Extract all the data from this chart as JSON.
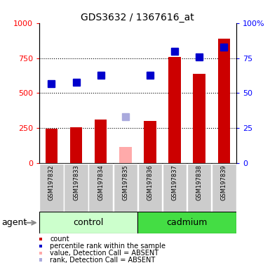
{
  "title": "GDS3632 / 1367616_at",
  "samples": [
    "GSM197832",
    "GSM197833",
    "GSM197834",
    "GSM197835",
    "GSM197836",
    "GSM197837",
    "GSM197838",
    "GSM197839"
  ],
  "count_values": [
    245,
    255,
    310,
    115,
    300,
    760,
    640,
    890
  ],
  "rank_values": [
    57,
    58,
    63,
    33,
    63,
    80,
    76,
    83
  ],
  "absent_flags": [
    false,
    false,
    false,
    true,
    false,
    false,
    false,
    false
  ],
  "color_count_present": "#cc0000",
  "color_count_absent": "#ffaaaa",
  "color_rank_present": "#0000cc",
  "color_rank_absent": "#aaaadd",
  "color_control_bg_light": "#ccffcc",
  "color_cadmium_bg_dark": "#44dd44",
  "color_xticklabel_bg": "#cccccc",
  "ylim_left": [
    0,
    1000
  ],
  "ylim_right": [
    0,
    100
  ],
  "yticks_left": [
    0,
    250,
    500,
    750,
    1000
  ],
  "ytick_labels_left": [
    "0",
    "250",
    "500",
    "750",
    "1000"
  ],
  "yticks_right": [
    0,
    25,
    50,
    75,
    100
  ],
  "ytick_labels_right": [
    "0",
    "25",
    "50",
    "75",
    "100%"
  ],
  "bar_width": 0.5,
  "marker_size": 7,
  "group_labels": [
    "control",
    "cadmium"
  ],
  "agent_label": "agent",
  "legend_items": [
    {
      "label": "count",
      "color": "#cc0000"
    },
    {
      "label": "percentile rank within the sample",
      "color": "#0000cc"
    },
    {
      "label": "value, Detection Call = ABSENT",
      "color": "#ffaaaa"
    },
    {
      "label": "rank, Detection Call = ABSENT",
      "color": "#aaaadd"
    }
  ]
}
